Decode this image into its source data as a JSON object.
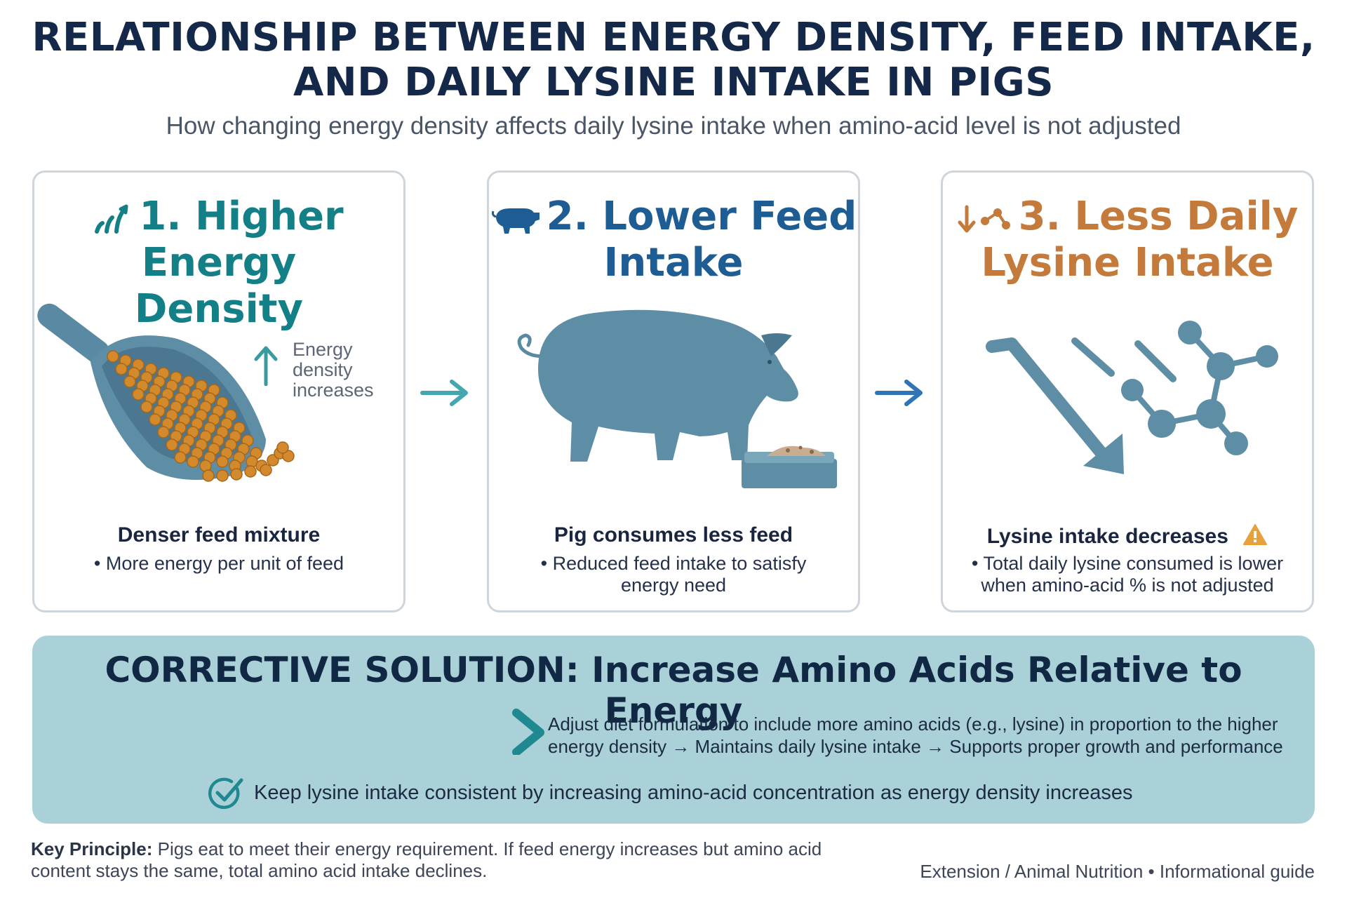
{
  "header": {
    "title_line1": "RELATIONSHIP BETWEEN ENERGY DENSITY, FEED INTAKE,",
    "title_line2": "AND DAILY LYSINE INTAKE IN PIGS",
    "subtitle": "How changing energy density affects daily lysine intake when amino-acid level is not adjusted"
  },
  "steps": [
    {
      "title_line1": "1. Higher Energy",
      "title_line2": "Density",
      "icon": "signal-bars-icon",
      "callout": [
        "Energy",
        "density",
        "increases"
      ],
      "heading": "Denser feed mixture",
      "note": "• More energy per unit of feed"
    },
    {
      "title_line1": "2. Lower Feed",
      "title_line2": "Intake",
      "icon": "pig-icon",
      "heading": "Pig consumes less feed",
      "note_line1": "• Reduced feed intake to satisfy",
      "note_line2": "energy need"
    },
    {
      "title_line1": "3. Less Daily",
      "title_line2": "Lysine Intake",
      "icon": "down-molecule-icon",
      "heading": "Lysine intake decreases",
      "note_line1": "• Total daily lysine consumed is lower",
      "note_line2": "when amino-acid % is not adjusted"
    }
  ],
  "solution": {
    "title": "CORRECTIVE SOLUTION: Increase Amino Acids Relative to Energy",
    "desc_line1": "Adjust diet formulation to include more amino acids (e.g., lysine) in proportion to the higher",
    "desc_line2": "energy density → Maintains daily lysine intake → Supports proper growth and performance",
    "check_text": "Keep lysine intake consistent by increasing amino-acid concentration as energy density increases"
  },
  "footer": {
    "principle_label": "Key Principle:",
    "principle_line1": " Pigs eat to meet their energy requirement. If feed energy increases but amino acid",
    "principle_line2": "content stays the same, total amino acid intake declines.",
    "source": "Extension / Animal Nutrition  •  Informational guide"
  },
  "colors": {
    "teal": "#137f86",
    "blue": "#1e5c94",
    "orange": "#c47a3a",
    "slate": "#5a8aa3",
    "pellet": "#d38a2c",
    "panel": "#a9d1d7"
  }
}
